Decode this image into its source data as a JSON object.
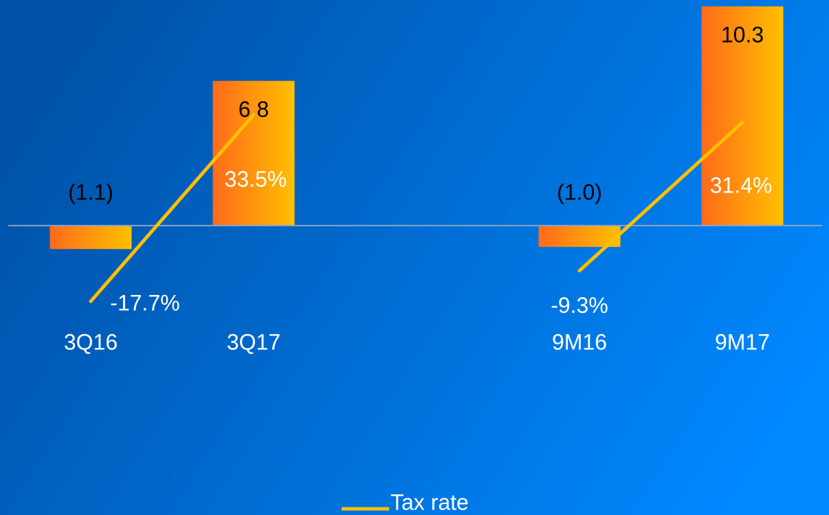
{
  "chart_data": {
    "type": "bar",
    "categories": [
      "3Q16",
      "3Q17",
      null,
      "9M16",
      "9M17"
    ],
    "series": [
      {
        "type": "bar",
        "gradient": [
          "#ff6a1a",
          "#ffc000"
        ],
        "values": [
          -1.1,
          6.8,
          null,
          -1.0,
          10.3
        ],
        "value_labels": [
          "(1.1)",
          "6.8",
          null,
          "(1.0)",
          "10.3"
        ]
      },
      {
        "name": "Tax rate",
        "type": "line",
        "axis": "y2",
        "color": "#ffc000",
        "values": [
          -17.7,
          33.5,
          null,
          -9.3,
          31.4
        ],
        "value_labels": [
          "-17.7%",
          "33.5%",
          null,
          "-9.3%",
          "31.4%"
        ]
      }
    ],
    "ylim": [
      -4,
      10.6
    ],
    "y2lim": [
      -20.3,
      65
    ],
    "legend": "bottom"
  }
}
